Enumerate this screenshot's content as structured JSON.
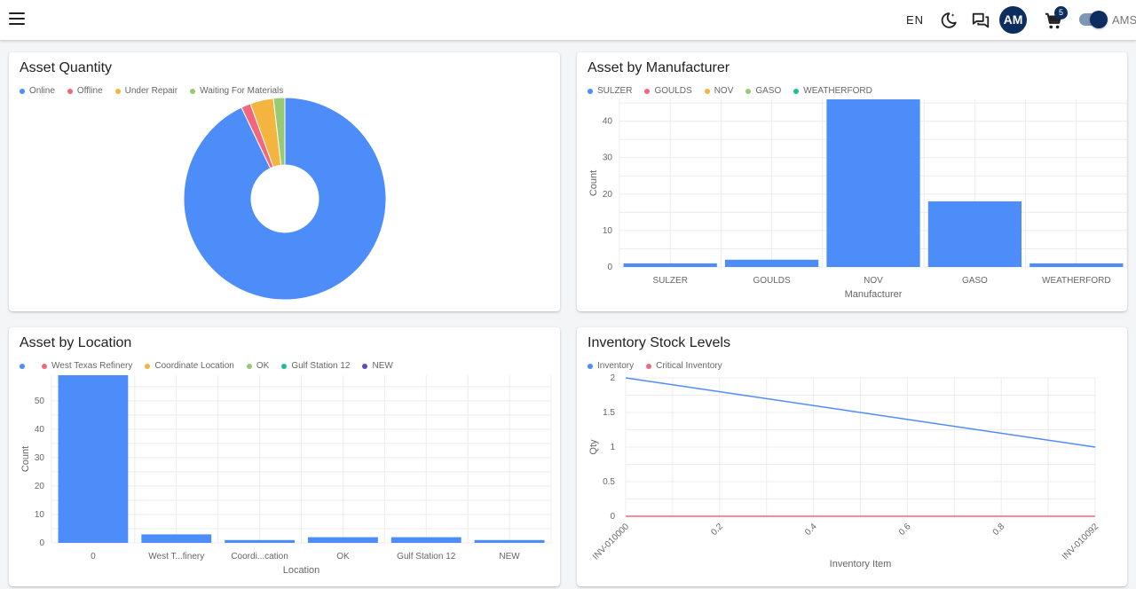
{
  "header": {
    "lang": "EN",
    "avatar_initials": "AM",
    "cart_count": "5",
    "toggle_label": "AMS",
    "icons": [
      "menu-icon",
      "dark-mode-icon",
      "chat-icon",
      "cart-icon"
    ]
  },
  "colors": {
    "blue": "#4d8df9",
    "red": "#f2677d",
    "yellow": "#f3b53f",
    "green": "#97ca72",
    "teal": "#1bbf98",
    "purple": "#5b4cc2",
    "navy": "#0d2d5e"
  },
  "cards": {
    "asset_quantity": {
      "title": "Asset Quantity",
      "chart_data": {
        "type": "pie",
        "legend": [
          "Online",
          "Offline",
          "Under Repair",
          "Waiting For Materials"
        ],
        "values": [
          92,
          1.5,
          3.7,
          1.8
        ],
        "colors": [
          "#4d8df9",
          "#f2677d",
          "#f3b53f",
          "#97ca72"
        ],
        "donut": true
      }
    },
    "asset_by_manufacturer": {
      "title": "Asset by Manufacturer",
      "chart_data": {
        "type": "bar",
        "legend": [
          "SULZER",
          "GOULDS",
          "NOV",
          "GASO",
          "WEATHERFORD"
        ],
        "legend_colors": [
          "#4d8df9",
          "#f2677d",
          "#f3b53f",
          "#97ca72",
          "#1bbf98"
        ],
        "categories": [
          "SULZER",
          "GOULDS",
          "NOV",
          "GASO",
          "WEATHERFORD"
        ],
        "values": [
          1,
          2,
          46,
          18,
          1
        ],
        "xlabel": "Manufacturer",
        "ylabel": "Count",
        "yticks": [
          0,
          10,
          20,
          30,
          40
        ],
        "ylim": [
          0,
          46
        ]
      }
    },
    "asset_by_location": {
      "title": "Asset by Location",
      "chart_data": {
        "type": "bar",
        "legend": [
          "",
          "West Texas Refinery",
          "Coordinate Location",
          "OK",
          "Gulf Station 12",
          "NEW"
        ],
        "legend_colors": [
          "#4d8df9",
          "#f2677d",
          "#f3b53f",
          "#97ca72",
          "#1bbf98",
          "#5b4cc2"
        ],
        "categories": [
          "0",
          "West T...finery",
          "Coordi...cation",
          "OK",
          "Gulf Station 12",
          "NEW"
        ],
        "values": [
          59,
          3,
          1,
          2,
          2,
          1
        ],
        "xlabel": "Location",
        "ylabel": "Count",
        "yticks": [
          0,
          10,
          20,
          30,
          40,
          50
        ],
        "ylim": [
          0,
          59
        ]
      }
    },
    "inventory_stock": {
      "title": "Inventory Stock Levels",
      "chart_data": {
        "type": "line",
        "legend": [
          "Inventory",
          "Critical Inventory"
        ],
        "legend_colors": [
          "#4d8df9",
          "#f2677d"
        ],
        "x_ticks": [
          "INV-010000",
          "0.2",
          "0.4",
          "0.6",
          "0.8",
          "INV-010092"
        ],
        "series": [
          {
            "name": "Inventory",
            "x": [
              0,
              1
            ],
            "y": [
              2,
              1
            ],
            "color": "#4d8df9"
          },
          {
            "name": "Critical Inventory",
            "x": [
              0,
              1
            ],
            "y": [
              0,
              0
            ],
            "color": "#f2677d"
          }
        ],
        "xlabel": "Inventory Item",
        "ylabel": "Qty",
        "yticks": [
          "0",
          "0.5",
          "1",
          "1.5",
          "2"
        ],
        "ylim": [
          0,
          2
        ]
      }
    }
  }
}
